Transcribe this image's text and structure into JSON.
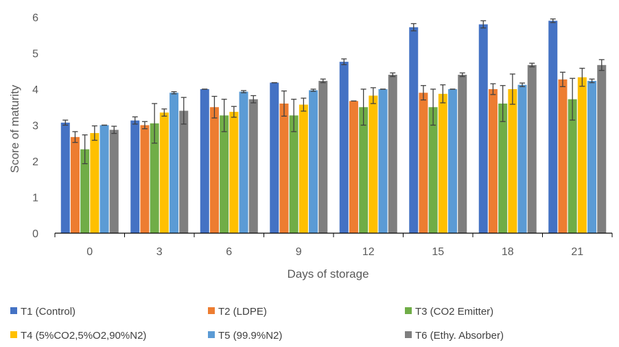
{
  "chart_data": {
    "type": "bar",
    "xlabel": "Days of storage",
    "ylabel": "Score of maturity",
    "categories": [
      "0",
      "3",
      "6",
      "9",
      "12",
      "15",
      "18",
      "21"
    ],
    "ylim": [
      0,
      6
    ],
    "yticks": [
      "0",
      "1",
      "2",
      "3",
      "4",
      "5",
      "6"
    ],
    "grid": false,
    "legend_position": "bottom",
    "error_bars": true,
    "series": [
      {
        "name": "T1 (Control)",
        "color": "#4472C4",
        "values": [
          3.07,
          3.13,
          4.0,
          4.18,
          4.76,
          5.72,
          5.8,
          5.9
        ],
        "errors": [
          0.07,
          0.1,
          0.0,
          0.0,
          0.08,
          0.1,
          0.1,
          0.05
        ]
      },
      {
        "name": "T2 (LDPE)",
        "color": "#ED7D31",
        "values": [
          2.67,
          3.0,
          3.5,
          3.6,
          3.67,
          3.9,
          4.0,
          4.27
        ],
        "errors": [
          0.15,
          0.1,
          0.3,
          0.35,
          0.0,
          0.2,
          0.15,
          0.2
        ]
      },
      {
        "name": "T3 (CO2 Emitter)",
        "color": "#70AD47",
        "values": [
          2.33,
          3.05,
          3.27,
          3.27,
          3.5,
          3.5,
          3.6,
          3.72
        ],
        "errors": [
          0.4,
          0.55,
          0.45,
          0.45,
          0.5,
          0.5,
          0.5,
          0.58
        ]
      },
      {
        "name": "T4 (5%CO2,5%O2,90%N2)",
        "color": "#FFC000",
        "values": [
          2.78,
          3.35,
          3.37,
          3.57,
          3.82,
          3.87,
          4.0,
          4.33
        ],
        "errors": [
          0.2,
          0.1,
          0.15,
          0.18,
          0.22,
          0.25,
          0.42,
          0.25
        ]
      },
      {
        "name": "T5 (99.9%N2)",
        "color": "#5B9BD5",
        "values": [
          3.0,
          3.9,
          3.93,
          3.97,
          4.0,
          4.0,
          4.12,
          4.23
        ],
        "errors": [
          0.0,
          0.03,
          0.03,
          0.03,
          0.0,
          0.0,
          0.05,
          0.05
        ]
      },
      {
        "name": "T6 (Ethy. Absorber)",
        "color": "#7F7F7F",
        "values": [
          2.87,
          3.4,
          3.72,
          4.23,
          4.4,
          4.4,
          4.67,
          4.67
        ],
        "errors": [
          0.1,
          0.37,
          0.1,
          0.05,
          0.05,
          0.05,
          0.05,
          0.15
        ]
      }
    ]
  }
}
